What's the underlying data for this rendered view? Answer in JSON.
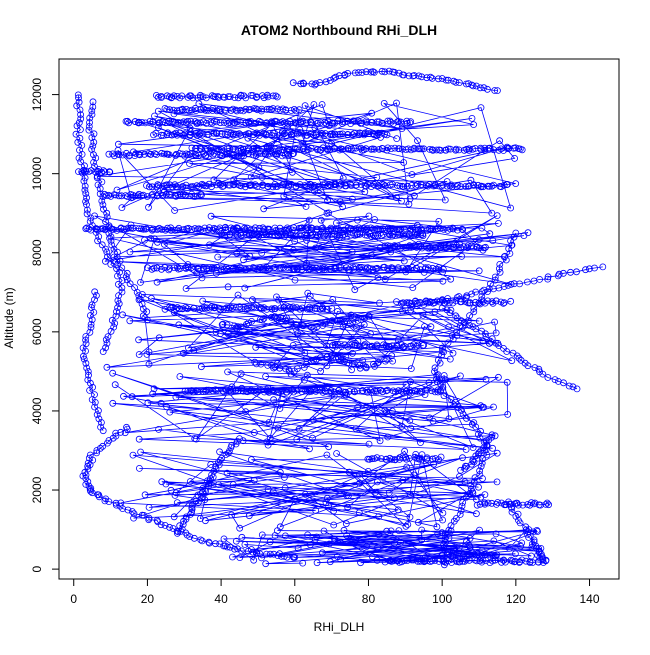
{
  "chart_data": {
    "type": "scatter",
    "title": "ATOM2 Northbound RHi_DLH",
    "xlabel": "RHi_DLH",
    "ylabel": "Altitude (m)",
    "xlim": [
      -4,
      148
    ],
    "ylim": [
      -250,
      12900
    ],
    "xticks": [
      0,
      20,
      40,
      60,
      80,
      100,
      120,
      140
    ],
    "yticks": [
      0,
      2000,
      4000,
      6000,
      8000,
      10000,
      12000
    ],
    "grid": false,
    "legend": "none",
    "marker": "open-circle",
    "connected": true,
    "series_color": "#0000ff",
    "flight_legs": [
      {
        "y": 11950,
        "x": [
          22,
          55
        ]
      },
      {
        "y": 11620,
        "x": [
          25,
          60
        ]
      },
      {
        "y": 11300,
        "x": [
          14,
          92
        ]
      },
      {
        "y": 11000,
        "x": [
          22,
          85
        ]
      },
      {
        "y": 10620,
        "x": [
          32,
          122
        ]
      },
      {
        "y": 10480,
        "x": [
          10,
          60
        ]
      },
      {
        "y": 10050,
        "x": [
          1,
          10
        ]
      },
      {
        "y": 9700,
        "x": [
          20,
          118
        ]
      },
      {
        "y": 9450,
        "x": [
          8,
          35
        ]
      },
      {
        "y": 8600,
        "x": [
          3,
          105
        ]
      },
      {
        "y": 8450,
        "x": [
          40,
          95
        ]
      },
      {
        "y": 8150,
        "x": [
          85,
          112
        ]
      },
      {
        "y": 7600,
        "x": [
          20,
          100
        ]
      },
      {
        "y": 6750,
        "x": [
          88,
          118
        ]
      },
      {
        "y": 6600,
        "x": [
          25,
          70
        ]
      },
      {
        "y": 5650,
        "x": [
          70,
          95
        ]
      },
      {
        "y": 4500,
        "x": [
          30,
          100
        ]
      },
      {
        "y": 2800,
        "x": [
          80,
          100
        ]
      },
      {
        "y": 1650,
        "x": [
          110,
          129
        ]
      },
      {
        "y": 350,
        "x": [
          100,
          115
        ]
      },
      {
        "y": 200,
        "x": [
          85,
          127
        ]
      }
    ],
    "profiles": [
      {
        "x": [
          1,
          1.5,
          1.2,
          1.8,
          2.5,
          3,
          4,
          6,
          9,
          12,
          13,
          12,
          10,
          8
        ],
        "y": [
          12000,
          11500,
          11000,
          10500,
          10000,
          9500,
          9000,
          8500,
          8000,
          7500,
          7000,
          6500,
          6000,
          5500
        ]
      },
      {
        "x": [
          5,
          4.5,
          5,
          6,
          7,
          8,
          9,
          10,
          12,
          15,
          18,
          20
        ],
        "y": [
          11800,
          11300,
          10800,
          10300,
          9800,
          9300,
          8800,
          8300,
          7800,
          7300,
          6800,
          6300
        ]
      },
      {
        "x": [
          6,
          5,
          4,
          3,
          3.5,
          5,
          6,
          8
        ],
        "y": [
          7000,
          6500,
          6000,
          5500,
          5000,
          4500,
          4000,
          3500
        ]
      },
      {
        "x": [
          15,
          10,
          6,
          4,
          3,
          4,
          6,
          10,
          15,
          20,
          25,
          30,
          35,
          40,
          45,
          50,
          55,
          60
        ],
        "y": [
          3600,
          3300,
          3000,
          2700,
          2400,
          2100,
          1900,
          1700,
          1500,
          1300,
          1100,
          900,
          700,
          600,
          500,
          400,
          350,
          300
        ]
      },
      {
        "x": [
          100,
          102,
          105,
          108,
          110,
          112,
          110,
          105,
          100,
          98,
          100,
          104,
          108,
          112,
          115,
          118,
          120
        ],
        "y": [
          500,
          1000,
          1500,
          2000,
          2500,
          3000,
          3500,
          4000,
          4500,
          5000,
          5500,
          6000,
          6500,
          7000,
          7500,
          8000,
          8500
        ]
      },
      {
        "x": [
          60,
          65,
          70,
          75,
          80,
          85,
          90,
          95,
          100,
          105,
          110,
          115
        ],
        "y": [
          12300,
          12250,
          12400,
          12550,
          12580,
          12580,
          12500,
          12450,
          12400,
          12300,
          12200,
          12100
        ]
      },
      {
        "x": [
          128,
          127,
          126,
          125,
          123,
          120,
          118
        ],
        "y": [
          200,
          300,
          450,
          700,
          1000,
          1400,
          1700
        ]
      },
      {
        "x": [
          113,
          112,
          110,
          108,
          105
        ],
        "y": [
          3400,
          3100,
          2900,
          2700,
          2500
        ]
      },
      {
        "x": [
          137,
          130,
          125,
          120,
          115,
          110,
          105,
          100
        ],
        "y": [
          4550,
          4800,
          5100,
          5400,
          5700,
          6000,
          6300,
          6600
        ]
      },
      {
        "x": [
          143,
          135,
          128,
          120,
          112,
          105,
          98,
          90
        ],
        "y": [
          7650,
          7500,
          7350,
          7200,
          7050,
          6900,
          6750,
          6600
        ]
      },
      {
        "x": [
          28,
          30,
          32,
          34,
          36,
          38,
          40,
          42,
          45
        ],
        "y": [
          900,
          1200,
          1500,
          1800,
          2100,
          2400,
          2700,
          3000,
          3300
        ]
      },
      {
        "x": [
          50,
          55,
          60,
          65,
          70,
          75,
          80,
          85
        ],
        "y": [
          5200,
          5100,
          5000,
          5300,
          5400,
          5200,
          5100,
          5300
        ]
      },
      {
        "x": [
          40,
          45,
          50,
          55,
          60,
          65,
          70,
          75,
          80
        ],
        "y": [
          6200,
          6100,
          6300,
          6400,
          6200,
          6100,
          6300,
          6200,
          6400
        ]
      }
    ]
  }
}
